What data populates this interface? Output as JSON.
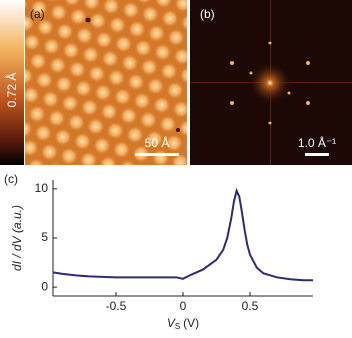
{
  "panels": {
    "a": {
      "label": "(a)",
      "colorbar_label": "0.72 Å",
      "scale_bar": "50 Å"
    },
    "b": {
      "label": "(b)",
      "scale_bar": "1.0 Å⁻¹"
    }
  },
  "chart_data": {
    "type": "line",
    "label": "(c)",
    "y_label": "dI / dV (a.u.)",
    "x_label": {
      "symbol": "V",
      "subscript": "S",
      "unit": "(V)"
    },
    "x": [
      -0.97,
      -0.9,
      -0.8,
      -0.7,
      -0.6,
      -0.5,
      -0.4,
      -0.3,
      -0.2,
      -0.1,
      -0.05,
      0,
      0.05,
      0.1,
      0.15,
      0.2,
      0.25,
      0.3,
      0.33,
      0.36,
      0.38,
      0.4,
      0.42,
      0.44,
      0.46,
      0.48,
      0.5,
      0.55,
      0.6,
      0.7,
      0.8,
      0.9,
      0.97
    ],
    "series": [
      {
        "color": "#2b2b78",
        "values": [
          1.5,
          1.35,
          1.2,
          1.1,
          1.05,
          1.0,
          1.0,
          1.0,
          1.0,
          1.0,
          1.0,
          0.85,
          1.2,
          1.5,
          1.8,
          2.3,
          2.8,
          3.8,
          5.0,
          7.0,
          8.7,
          9.8,
          9.2,
          7.6,
          5.8,
          4.3,
          3.3,
          2.0,
          1.4,
          1.0,
          0.8,
          0.7,
          0.7
        ]
      }
    ],
    "xlim": [
      -0.97,
      0.97
    ],
    "ylim": [
      -0.9,
      10.9
    ],
    "xticks": [
      -0.5,
      0,
      0.5
    ],
    "yticks": [
      0,
      5,
      10
    ]
  }
}
